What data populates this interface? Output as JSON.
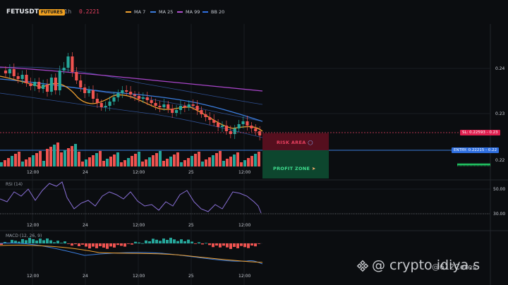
{
  "header": {
    "symbol": "FETUSDT",
    "badge": "FUTURES",
    "timeframe": "1h",
    "price": "0.2221",
    "indicators": [
      {
        "label": "MA 7",
        "color": "#f0a030"
      },
      {
        "label": "MA 25",
        "color": "#3b7ddd"
      },
      {
        "label": "MA 99",
        "color": "#b050d0"
      },
      {
        "label": "BB 20",
        "color": "#2f6fe0"
      }
    ]
  },
  "price_axis": [
    "0.24",
    "0.23",
    "0.22"
  ],
  "time_axis": [
    "12:00",
    "24",
    "12:00",
    "25",
    "12:00"
  ],
  "tags": {
    "sl": "SL: 0.22593 - 0.23",
    "entry": "ENTRY: 0.22215 - 0.22"
  },
  "zones": {
    "risk": "RISK AREA",
    "profit": "PROFIT ZONE"
  },
  "rsi": {
    "label": "RSI (14)",
    "levels": [
      "50.00",
      "30.00"
    ]
  },
  "macd": {
    "label": "MACD (12, 26, 9)"
  },
  "colors": {
    "up": "#26a69a",
    "down": "#ef5350",
    "risk_fill": "#5a1020",
    "profit_fill": "#0e4a30"
  },
  "watermark": {
    "main": "@ crypto idiya.s",
    "secondary": "@612Ceres"
  }
}
